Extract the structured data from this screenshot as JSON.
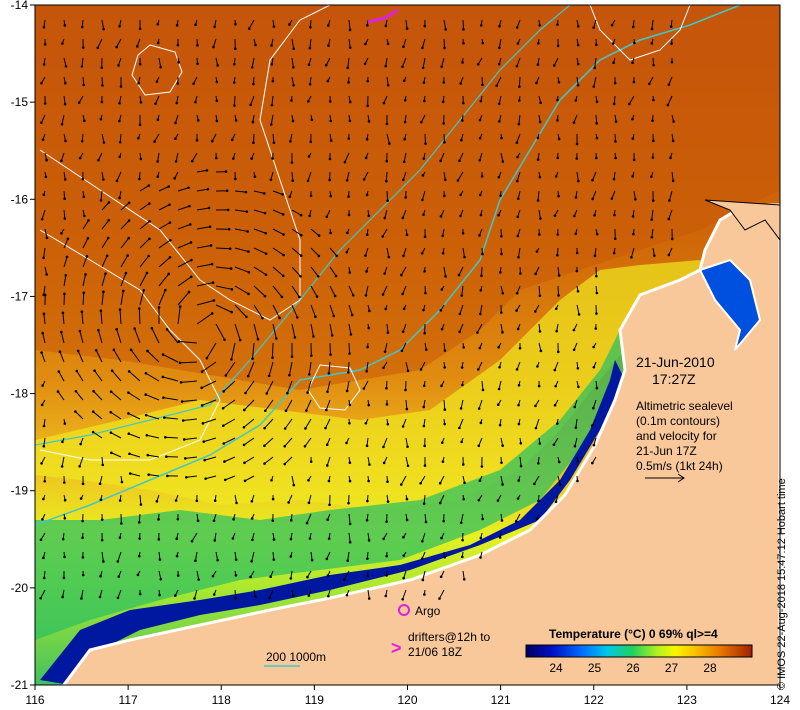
{
  "map": {
    "lon_ticks": [
      "116",
      "117",
      "118",
      "119",
      "120",
      "121",
      "122",
      "123",
      "124"
    ],
    "lat_ticks": [
      "-14",
      "-15",
      "-16",
      "-17",
      "-18",
      "-19",
      "-20",
      "-21"
    ],
    "date": "21-Jun-2010",
    "time": "17:27Z",
    "altimetry_lines": [
      "Altimetric sealevel",
      "(0.1m contours)",
      "and velocity for",
      "21-Jun 17Z",
      "0.5m/s (1kt 24h)"
    ],
    "argo_label": "Argo",
    "drifter_symbol": ">",
    "drifter_lines": [
      "drifters@12h to",
      "21/06 18Z"
    ],
    "isobath_label": "200  1000m",
    "colorbar_title": "Temperature (°C) 0 69% ql>=4",
    "colorbar_ticks": [
      "24",
      "25",
      "26",
      "27",
      "28"
    ],
    "credit": "© IMOS 22-Aug-2018 15:47:12 Hobart time",
    "colors": {
      "land": "#f9c89a",
      "isobath": "#40c8c8",
      "argo": "#e020e0",
      "warm": "#c85a08",
      "cool": "#0018a0"
    }
  }
}
